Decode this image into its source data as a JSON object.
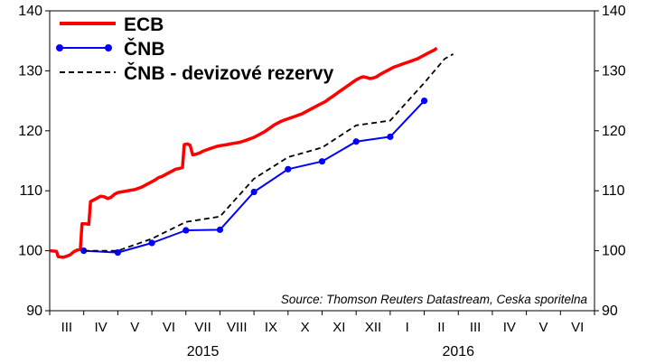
{
  "chart_data": {
    "type": "line",
    "ylim": [
      90,
      140
    ],
    "yticks": [
      90,
      100,
      110,
      120,
      130,
      140
    ],
    "x_range": [
      0,
      16
    ],
    "x_categories": [
      "III",
      "IV",
      "V",
      "VI",
      "VII",
      "VIII",
      "IX",
      "X",
      "XI",
      "XII",
      "I",
      "II",
      "III",
      "IV",
      "V",
      "VI"
    ],
    "years": [
      {
        "label": "2015",
        "x": 4.5
      },
      {
        "label": "2016",
        "x": 12.0
      }
    ],
    "grid": false,
    "legend_position": "top-left",
    "source": "Source: Thomson Reuters Datastream, Ceska sporitelna",
    "colors": {
      "ecb": "#ff0000",
      "cnb": "#0000ff",
      "reserves": "#000000"
    },
    "series": [
      {
        "name": "ECB",
        "style": "solid",
        "points": [
          [
            0.0,
            100.0
          ],
          [
            0.2,
            99.9
          ],
          [
            0.25,
            99.0
          ],
          [
            0.4,
            98.9
          ],
          [
            0.5,
            99.1
          ],
          [
            0.6,
            99.3
          ],
          [
            0.7,
            99.8
          ],
          [
            0.8,
            100.1
          ],
          [
            0.9,
            100.2
          ],
          [
            0.95,
            104.5
          ],
          [
            1.05,
            104.5
          ],
          [
            1.15,
            104.4
          ],
          [
            1.2,
            108.2
          ],
          [
            1.3,
            108.5
          ],
          [
            1.4,
            108.8
          ],
          [
            1.5,
            109.1
          ],
          [
            1.6,
            109.0
          ],
          [
            1.7,
            108.7
          ],
          [
            1.8,
            108.9
          ],
          [
            1.9,
            109.4
          ],
          [
            2.0,
            109.7
          ],
          [
            2.1,
            109.8
          ],
          [
            2.2,
            109.9
          ],
          [
            2.3,
            110.0
          ],
          [
            2.4,
            110.1
          ],
          [
            2.5,
            110.2
          ],
          [
            2.6,
            110.4
          ],
          [
            2.7,
            110.6
          ],
          [
            2.8,
            110.9
          ],
          [
            2.9,
            111.2
          ],
          [
            3.0,
            111.5
          ],
          [
            3.1,
            111.8
          ],
          [
            3.2,
            112.2
          ],
          [
            3.3,
            112.4
          ],
          [
            3.4,
            112.7
          ],
          [
            3.5,
            113.0
          ],
          [
            3.6,
            113.3
          ],
          [
            3.7,
            113.6
          ],
          [
            3.8,
            113.7
          ],
          [
            3.9,
            113.9
          ],
          [
            3.95,
            117.7
          ],
          [
            4.05,
            117.8
          ],
          [
            4.12,
            117.6
          ],
          [
            4.2,
            116.0
          ],
          [
            4.3,
            116.1
          ],
          [
            4.4,
            116.3
          ],
          [
            4.5,
            116.6
          ],
          [
            4.6,
            116.8
          ],
          [
            4.7,
            117.0
          ],
          [
            4.8,
            117.2
          ],
          [
            4.9,
            117.4
          ],
          [
            5.0,
            117.5
          ],
          [
            5.1,
            117.6
          ],
          [
            5.2,
            117.7
          ],
          [
            5.3,
            117.8
          ],
          [
            5.4,
            117.9
          ],
          [
            5.5,
            118.0
          ],
          [
            5.6,
            118.1
          ],
          [
            5.7,
            118.3
          ],
          [
            5.8,
            118.5
          ],
          [
            5.9,
            118.7
          ],
          [
            6.0,
            118.9
          ],
          [
            6.1,
            119.2
          ],
          [
            6.2,
            119.5
          ],
          [
            6.3,
            119.8
          ],
          [
            6.4,
            120.2
          ],
          [
            6.5,
            120.6
          ],
          [
            6.6,
            121.0
          ],
          [
            6.7,
            121.3
          ],
          [
            6.8,
            121.6
          ],
          [
            6.9,
            121.8
          ],
          [
            7.0,
            122.0
          ],
          [
            7.1,
            122.2
          ],
          [
            7.2,
            122.4
          ],
          [
            7.3,
            122.6
          ],
          [
            7.4,
            122.8
          ],
          [
            7.5,
            123.1
          ],
          [
            7.6,
            123.4
          ],
          [
            7.7,
            123.7
          ],
          [
            7.8,
            124.0
          ],
          [
            7.9,
            124.3
          ],
          [
            8.0,
            124.6
          ],
          [
            8.1,
            124.9
          ],
          [
            8.2,
            125.3
          ],
          [
            8.3,
            125.7
          ],
          [
            8.4,
            126.1
          ],
          [
            8.5,
            126.5
          ],
          [
            8.6,
            126.9
          ],
          [
            8.7,
            127.3
          ],
          [
            8.8,
            127.7
          ],
          [
            8.9,
            128.1
          ],
          [
            9.0,
            128.5
          ],
          [
            9.1,
            128.8
          ],
          [
            9.2,
            129.0
          ],
          [
            9.3,
            128.9
          ],
          [
            9.4,
            128.7
          ],
          [
            9.5,
            128.8
          ],
          [
            9.6,
            129.0
          ],
          [
            9.7,
            129.4
          ],
          [
            9.8,
            129.7
          ],
          [
            9.9,
            130.0
          ],
          [
            10.0,
            130.3
          ],
          [
            10.1,
            130.6
          ],
          [
            10.2,
            130.8
          ],
          [
            10.3,
            131.0
          ],
          [
            10.4,
            131.2
          ],
          [
            10.5,
            131.4
          ],
          [
            10.6,
            131.6
          ],
          [
            10.7,
            131.8
          ],
          [
            10.8,
            132.0
          ],
          [
            10.9,
            132.3
          ],
          [
            11.0,
            132.6
          ],
          [
            11.1,
            132.9
          ],
          [
            11.2,
            133.2
          ],
          [
            11.3,
            133.5
          ],
          [
            11.37,
            133.8
          ]
        ]
      },
      {
        "name": "ČNB",
        "style": "solid-markers",
        "points": [
          [
            1.0,
            100.0
          ],
          [
            2.0,
            99.7
          ],
          [
            3.0,
            101.3
          ],
          [
            4.0,
            103.4
          ],
          [
            5.0,
            103.5
          ],
          [
            6.0,
            109.8
          ],
          [
            7.0,
            113.6
          ],
          [
            8.0,
            114.9
          ],
          [
            9.0,
            118.2
          ],
          [
            10.0,
            119.0
          ],
          [
            11.0,
            125.0
          ]
        ]
      },
      {
        "name": "ČNB - devizové rezervy",
        "style": "dashed",
        "points": [
          [
            1.0,
            100.0
          ],
          [
            2.0,
            100.0
          ],
          [
            3.0,
            102.0
          ],
          [
            4.0,
            104.8
          ],
          [
            5.0,
            105.7
          ],
          [
            6.0,
            112.0
          ],
          [
            7.0,
            115.6
          ],
          [
            8.0,
            117.2
          ],
          [
            9.0,
            120.9
          ],
          [
            10.0,
            121.7
          ],
          [
            11.0,
            128.0
          ],
          [
            11.6,
            132.0
          ],
          [
            11.85,
            132.8
          ]
        ]
      }
    ]
  }
}
